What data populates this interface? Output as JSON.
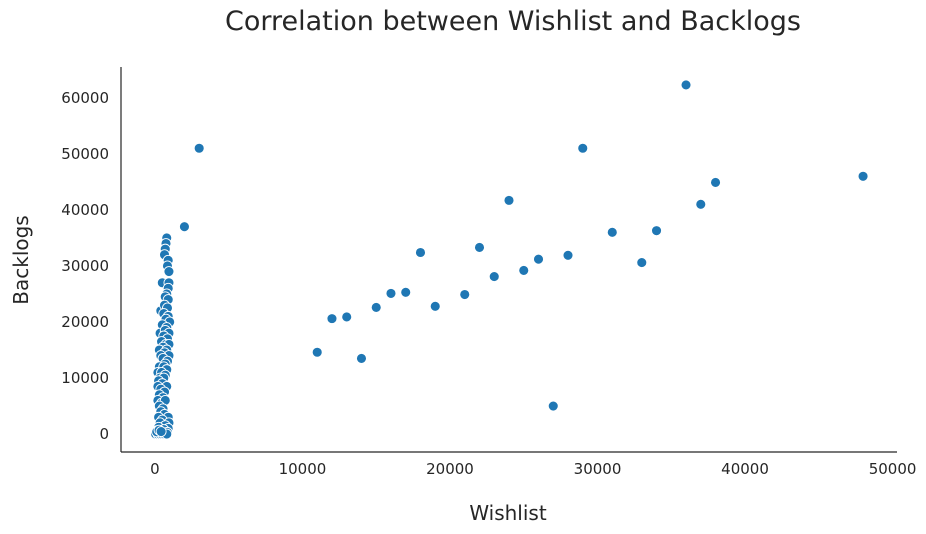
{
  "chart_data": {
    "type": "scatter",
    "title": "Correlation between Wishlist and Backlogs",
    "xlabel": "Wishlist",
    "ylabel": "Backlogs",
    "xlim": [
      -2300,
      50300
    ],
    "ylim": [
      -3200,
      65500
    ],
    "xticks": [
      0,
      10000,
      20000,
      30000,
      40000,
      50000
    ],
    "yticks": [
      0,
      10000,
      20000,
      30000,
      40000,
      50000,
      60000
    ],
    "grid": false,
    "legend": false,
    "color": "#1f77b4",
    "points": [
      [
        36000,
        62300
      ],
      [
        3000,
        51000
      ],
      [
        29000,
        51000
      ],
      [
        48000,
        46000
      ],
      [
        38000,
        44900
      ],
      [
        24000,
        41700
      ],
      [
        37000,
        41000
      ],
      [
        2000,
        37000
      ],
      [
        34000,
        36300
      ],
      [
        31000,
        36000
      ],
      [
        22000,
        33300
      ],
      [
        18000,
        32400
      ],
      [
        28000,
        31900
      ],
      [
        26000,
        31200
      ],
      [
        33000,
        30600
      ],
      [
        25000,
        29200
      ],
      [
        23000,
        28100
      ],
      [
        17000,
        25300
      ],
      [
        16000,
        25100
      ],
      [
        21000,
        24900
      ],
      [
        19000,
        22800
      ],
      [
        15000,
        22600
      ],
      [
        13000,
        20900
      ],
      [
        12000,
        20600
      ],
      [
        11000,
        14600
      ],
      [
        14000,
        13500
      ],
      [
        27000,
        5000
      ],
      [
        800,
        35000
      ],
      [
        750,
        34000
      ],
      [
        700,
        33000
      ],
      [
        650,
        32000
      ],
      [
        900,
        31000
      ],
      [
        850,
        30000
      ],
      [
        950,
        29000
      ],
      [
        500,
        27000
      ],
      [
        950,
        27000
      ],
      [
        900,
        26000
      ],
      [
        800,
        25000
      ],
      [
        700,
        24500
      ],
      [
        900,
        24000
      ],
      [
        400,
        22000
      ],
      [
        650,
        23000
      ],
      [
        850,
        22500
      ],
      [
        600,
        21500
      ],
      [
        900,
        21000
      ],
      [
        750,
        20500
      ],
      [
        1000,
        20000
      ],
      [
        500,
        19500
      ],
      [
        800,
        19000
      ],
      [
        350,
        18000
      ],
      [
        700,
        18500
      ],
      [
        950,
        18000
      ],
      [
        600,
        17500
      ],
      [
        850,
        17000
      ],
      [
        450,
        16500
      ],
      [
        750,
        16000
      ],
      [
        950,
        16000
      ],
      [
        550,
        15500
      ],
      [
        300,
        15000
      ],
      [
        800,
        15000
      ],
      [
        650,
        14500
      ],
      [
        950,
        14000
      ],
      [
        400,
        14000
      ],
      [
        550,
        13500
      ],
      [
        850,
        13000
      ],
      [
        700,
        12500
      ],
      [
        300,
        12000
      ],
      [
        600,
        12000
      ],
      [
        800,
        11500
      ],
      [
        200,
        11000
      ],
      [
        450,
        11000
      ],
      [
        700,
        10500
      ],
      [
        350,
        10000
      ],
      [
        600,
        10000
      ],
      [
        250,
        9500
      ],
      [
        500,
        9000
      ],
      [
        800,
        8500
      ],
      [
        200,
        8500
      ],
      [
        400,
        8000
      ],
      [
        650,
        7500
      ],
      [
        300,
        7000
      ],
      [
        550,
        6500
      ],
      [
        200,
        6000
      ],
      [
        450,
        5500
      ],
      [
        700,
        6000
      ],
      [
        300,
        5000
      ],
      [
        550,
        4500
      ],
      [
        400,
        4000
      ],
      [
        650,
        3500
      ],
      [
        250,
        3000
      ],
      [
        900,
        3000
      ],
      [
        500,
        2500
      ],
      [
        950,
        2000
      ],
      [
        350,
        2000
      ],
      [
        700,
        1500
      ],
      [
        900,
        1000
      ],
      [
        250,
        1200
      ],
      [
        600,
        800
      ],
      [
        850,
        300
      ],
      [
        150,
        600
      ],
      [
        300,
        300
      ],
      [
        450,
        100
      ],
      [
        100,
        200
      ],
      [
        50,
        0
      ],
      [
        200,
        0
      ],
      [
        350,
        0
      ],
      [
        500,
        0
      ],
      [
        650,
        0
      ],
      [
        800,
        0
      ],
      [
        120,
        400
      ],
      [
        280,
        700
      ],
      [
        420,
        450
      ]
    ]
  }
}
